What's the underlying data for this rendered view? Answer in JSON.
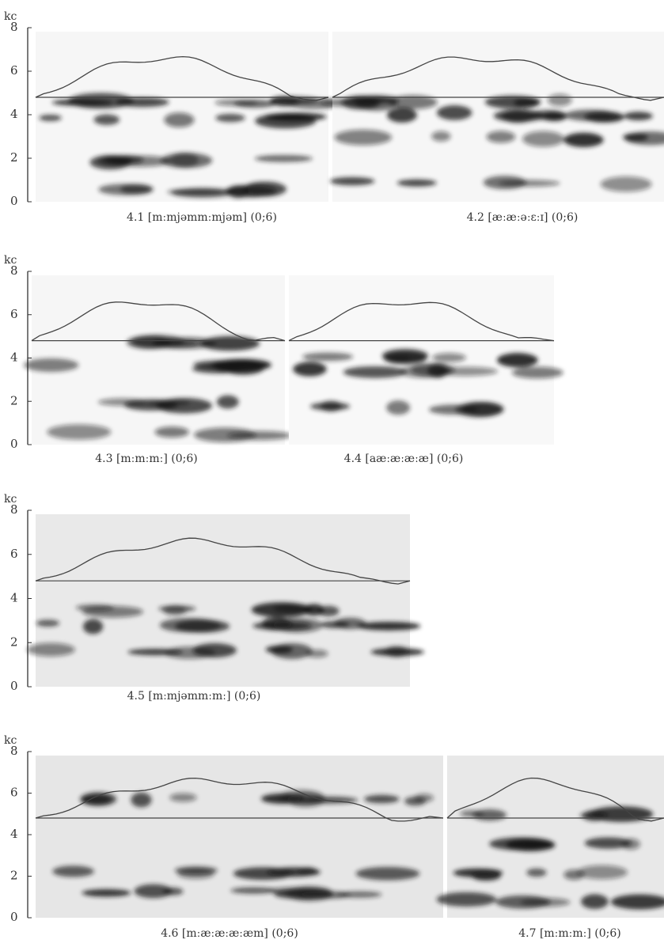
{
  "rows": [
    {
      "unit": "kc",
      "ticks": [
        "8",
        "6",
        "4",
        "2",
        "0"
      ],
      "panels": [
        {
          "caption": "4.1 [mːmjəmmːmjəm] (0;6)"
        },
        {
          "caption": "4.2 [æːæːəːɛːɪ] (0;6)"
        }
      ]
    },
    {
      "unit": "kc",
      "ticks": [
        "8",
        "6",
        "4",
        "2",
        "0"
      ],
      "panels": [
        {
          "caption": "4.3 [mːmːmː] (0;6)"
        },
        {
          "caption": "4.4 [aæːæːæːæ] (0;6)"
        }
      ]
    },
    {
      "unit": "kc",
      "ticks": [
        "8",
        "6",
        "4",
        "2",
        "0"
      ],
      "panels": [
        {
          "caption": "4.5 [mːmjəmmːmː] (0;6)"
        }
      ]
    },
    {
      "unit": "kc",
      "ticks": [
        "8",
        "6",
        "4",
        "2",
        "0"
      ],
      "panels": [
        {
          "caption": "4.6 [mːæːæːæːæm] (0;6)"
        },
        {
          "caption": "4.7 [mːmːmː] (0;6)"
        }
      ]
    }
  ]
}
